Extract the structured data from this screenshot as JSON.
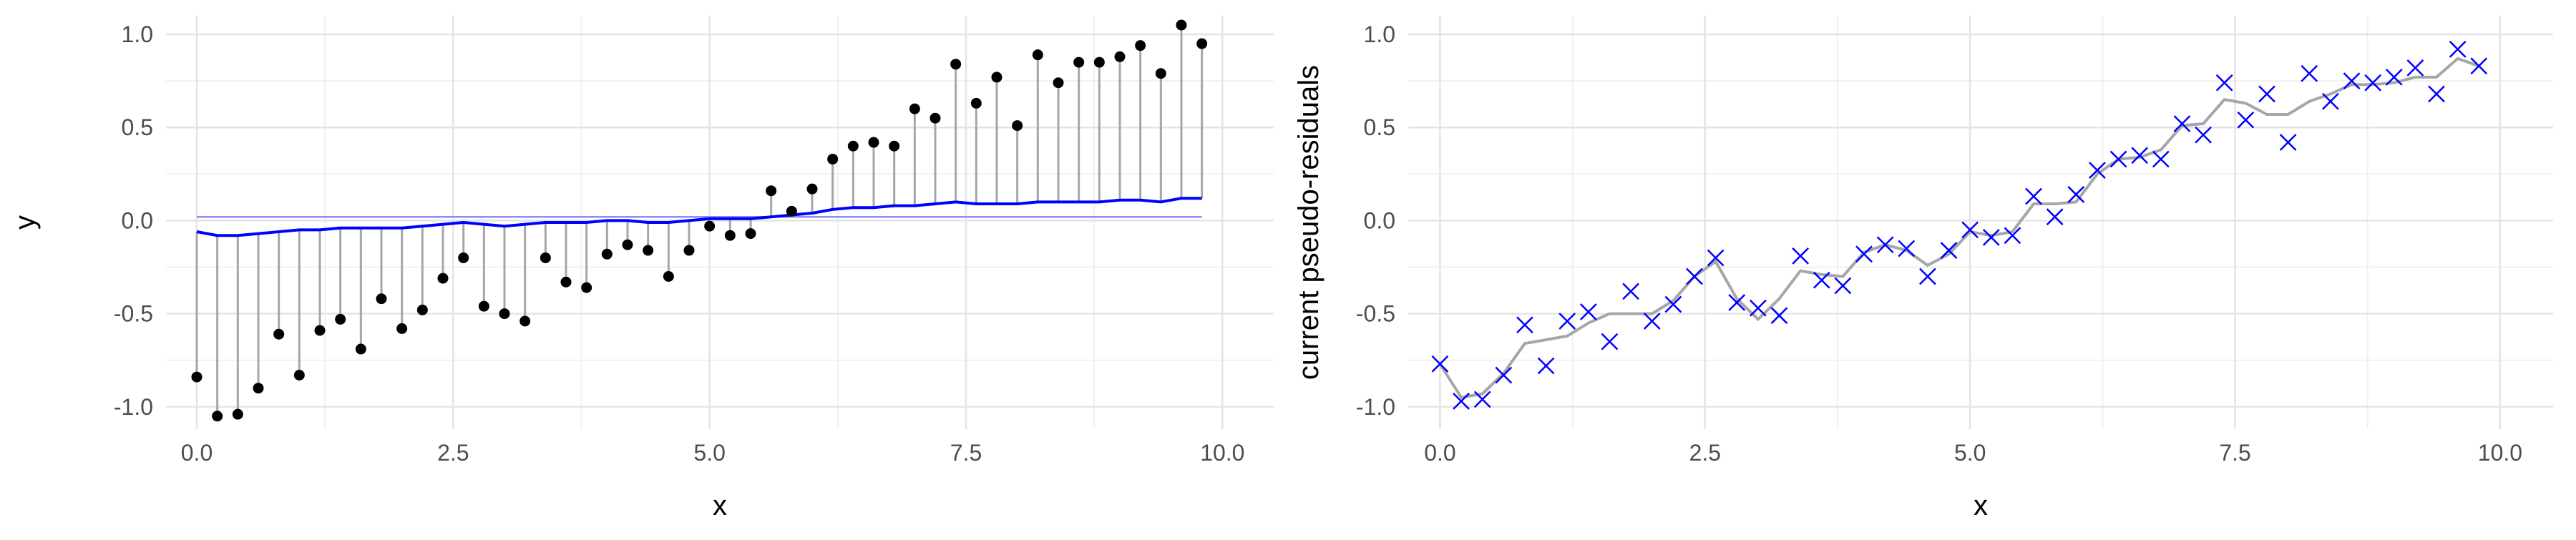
{
  "chart_data": [
    {
      "type": "scatter",
      "subtype": "stem",
      "xlabel": "x",
      "ylabel": "y",
      "xlim": [
        -0.3,
        10.5
      ],
      "ylim": [
        -1.12,
        1.1
      ],
      "xticks": [
        0.0,
        2.5,
        5.0,
        7.5,
        10.0
      ],
      "xtick_labels": [
        "0.0",
        "2.5",
        "5.0",
        "7.5",
        "10.0"
      ],
      "yticks": [
        -1.0,
        -0.5,
        0.0,
        0.5,
        1.0
      ],
      "ytick_labels": [
        "-1.0",
        "-0.5",
        "0.0",
        "0.5",
        "1.0"
      ],
      "grid": true,
      "hline": 0.02,
      "points": [
        {
          "x": 0.0,
          "y": -0.84,
          "fit": -0.06
        },
        {
          "x": 0.2,
          "y": -1.05,
          "fit": -0.08
        },
        {
          "x": 0.4,
          "y": -1.04,
          "fit": -0.08
        },
        {
          "x": 0.6,
          "y": -0.9,
          "fit": -0.07
        },
        {
          "x": 0.8,
          "y": -0.61,
          "fit": -0.06
        },
        {
          "x": 1.0,
          "y": -0.83,
          "fit": -0.05
        },
        {
          "x": 1.2,
          "y": -0.59,
          "fit": -0.05
        },
        {
          "x": 1.4,
          "y": -0.53,
          "fit": -0.04
        },
        {
          "x": 1.6,
          "y": -0.69,
          "fit": -0.04
        },
        {
          "x": 1.8,
          "y": -0.42,
          "fit": -0.04
        },
        {
          "x": 2.0,
          "y": -0.58,
          "fit": -0.04
        },
        {
          "x": 2.2,
          "y": -0.48,
          "fit": -0.03
        },
        {
          "x": 2.4,
          "y": -0.31,
          "fit": -0.02
        },
        {
          "x": 2.6,
          "y": -0.2,
          "fit": -0.01
        },
        {
          "x": 2.8,
          "y": -0.46,
          "fit": -0.02
        },
        {
          "x": 3.0,
          "y": -0.5,
          "fit": -0.03
        },
        {
          "x": 3.2,
          "y": -0.54,
          "fit": -0.02
        },
        {
          "x": 3.4,
          "y": -0.2,
          "fit": -0.01
        },
        {
          "x": 3.6,
          "y": -0.33,
          "fit": -0.01
        },
        {
          "x": 3.8,
          "y": -0.36,
          "fit": -0.01
        },
        {
          "x": 4.0,
          "y": -0.18,
          "fit": 0.0
        },
        {
          "x": 4.2,
          "y": -0.13,
          "fit": 0.0
        },
        {
          "x": 4.4,
          "y": -0.16,
          "fit": -0.01
        },
        {
          "x": 4.6,
          "y": -0.3,
          "fit": -0.01
        },
        {
          "x": 4.8,
          "y": -0.16,
          "fit": 0.0
        },
        {
          "x": 5.0,
          "y": -0.03,
          "fit": 0.01
        },
        {
          "x": 5.2,
          "y": -0.08,
          "fit": 0.01
        },
        {
          "x": 5.4,
          "y": -0.07,
          "fit": 0.01
        },
        {
          "x": 5.6,
          "y": 0.16,
          "fit": 0.02
        },
        {
          "x": 5.8,
          "y": 0.05,
          "fit": 0.03
        },
        {
          "x": 6.0,
          "y": 0.17,
          "fit": 0.04
        },
        {
          "x": 6.2,
          "y": 0.33,
          "fit": 0.06
        },
        {
          "x": 6.4,
          "y": 0.4,
          "fit": 0.07
        },
        {
          "x": 6.6,
          "y": 0.42,
          "fit": 0.07
        },
        {
          "x": 6.8,
          "y": 0.4,
          "fit": 0.08
        },
        {
          "x": 7.0,
          "y": 0.6,
          "fit": 0.08
        },
        {
          "x": 7.2,
          "y": 0.55,
          "fit": 0.09
        },
        {
          "x": 7.4,
          "y": 0.84,
          "fit": 0.1
        },
        {
          "x": 7.6,
          "y": 0.63,
          "fit": 0.09
        },
        {
          "x": 7.8,
          "y": 0.77,
          "fit": 0.09
        },
        {
          "x": 8.0,
          "y": 0.51,
          "fit": 0.09
        },
        {
          "x": 8.2,
          "y": 0.89,
          "fit": 0.1
        },
        {
          "x": 8.4,
          "y": 0.74,
          "fit": 0.1
        },
        {
          "x": 8.6,
          "y": 0.85,
          "fit": 0.1
        },
        {
          "x": 8.8,
          "y": 0.85,
          "fit": 0.1
        },
        {
          "x": 9.0,
          "y": 0.88,
          "fit": 0.11
        },
        {
          "x": 9.2,
          "y": 0.94,
          "fit": 0.11
        },
        {
          "x": 9.4,
          "y": 0.79,
          "fit": 0.1
        },
        {
          "x": 9.6,
          "y": 1.05,
          "fit": 0.12
        },
        {
          "x": 9.8,
          "y": 0.95,
          "fit": 0.12
        }
      ],
      "colors": {
        "points": "#000000",
        "stems": "#a6a6a6",
        "fit": "#0000ff",
        "hline": "#8c8cff"
      }
    },
    {
      "type": "scatter",
      "xlabel": "x",
      "ylabel": "current pseudo-residuals",
      "xlim": [
        -0.3,
        10.5
      ],
      "ylim": [
        -1.12,
        1.1
      ],
      "xticks": [
        0.0,
        2.5,
        5.0,
        7.5,
        10.0
      ],
      "xtick_labels": [
        "0.0",
        "2.5",
        "5.0",
        "7.5",
        "10.0"
      ],
      "yticks": [
        -1.0,
        -0.5,
        0.0,
        0.5,
        1.0
      ],
      "ytick_labels": [
        "-1.0",
        "-0.5",
        "0.0",
        "0.5",
        "1.0"
      ],
      "grid": true,
      "x": [
        0.0,
        0.2,
        0.4,
        0.6,
        0.8,
        1.0,
        1.2,
        1.4,
        1.6,
        1.8,
        2.0,
        2.2,
        2.4,
        2.6,
        2.8,
        3.0,
        3.2,
        3.4,
        3.6,
        3.8,
        4.0,
        4.2,
        4.4,
        4.6,
        4.8,
        5.0,
        5.2,
        5.4,
        5.6,
        5.8,
        6.0,
        6.2,
        6.4,
        6.6,
        6.8,
        7.0,
        7.2,
        7.4,
        7.6,
        7.8,
        8.0,
        8.2,
        8.4,
        8.6,
        8.8,
        9.0,
        9.2,
        9.4,
        9.6,
        9.8
      ],
      "residuals": [
        -0.77,
        -0.97,
        -0.96,
        -0.83,
        -0.56,
        -0.78,
        -0.54,
        -0.49,
        -0.65,
        -0.38,
        -0.54,
        -0.45,
        -0.3,
        -0.2,
        -0.44,
        -0.47,
        -0.51,
        -0.19,
        -0.32,
        -0.35,
        -0.18,
        -0.13,
        -0.15,
        -0.3,
        -0.16,
        -0.05,
        -0.09,
        -0.08,
        0.13,
        0.02,
        0.14,
        0.27,
        0.33,
        0.35,
        0.33,
        0.52,
        0.46,
        0.74,
        0.54,
        0.68,
        0.42,
        0.79,
        0.64,
        0.75,
        0.74,
        0.77,
        0.82,
        0.68,
        0.92,
        0.83
      ],
      "smooth": [
        -0.77,
        -0.95,
        -0.93,
        -0.82,
        -0.66,
        -0.64,
        -0.62,
        -0.55,
        -0.5,
        -0.5,
        -0.5,
        -0.43,
        -0.3,
        -0.22,
        -0.42,
        -0.53,
        -0.42,
        -0.27,
        -0.29,
        -0.3,
        -0.17,
        -0.13,
        -0.16,
        -0.24,
        -0.18,
        -0.06,
        -0.08,
        -0.06,
        0.09,
        0.09,
        0.1,
        0.25,
        0.33,
        0.34,
        0.38,
        0.51,
        0.52,
        0.65,
        0.63,
        0.57,
        0.57,
        0.64,
        0.68,
        0.73,
        0.73,
        0.74,
        0.77,
        0.77,
        0.87,
        0.83
      ],
      "colors": {
        "markers": "#0000ff",
        "smooth": "#a6a6a6"
      }
    }
  ]
}
